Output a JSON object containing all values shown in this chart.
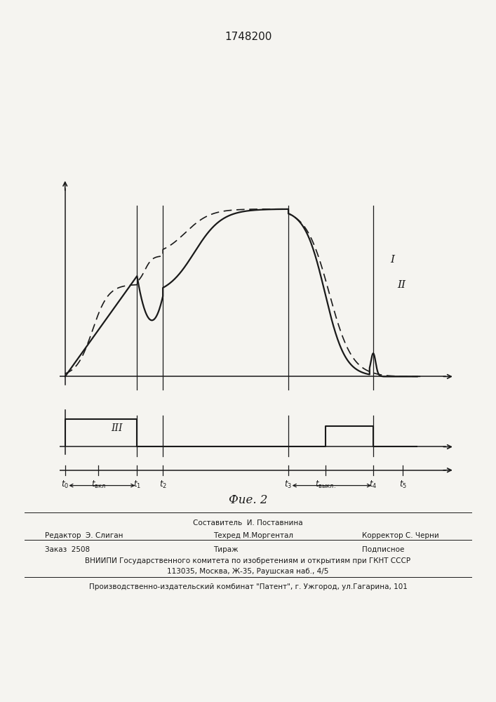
{
  "title": "1748200",
  "fig2_label": "Фие. 2",
  "background_color": "#f5f4f0",
  "line_color": "#1a1a1a",
  "curve_I_label": "I",
  "curve_II_label": "II",
  "curve_III_label": "III",
  "t0": 0.0,
  "tvkl": 0.09,
  "t1": 0.195,
  "t2": 0.265,
  "t3": 0.605,
  "tvykl": 0.705,
  "t4": 0.835,
  "t5": 0.915
}
